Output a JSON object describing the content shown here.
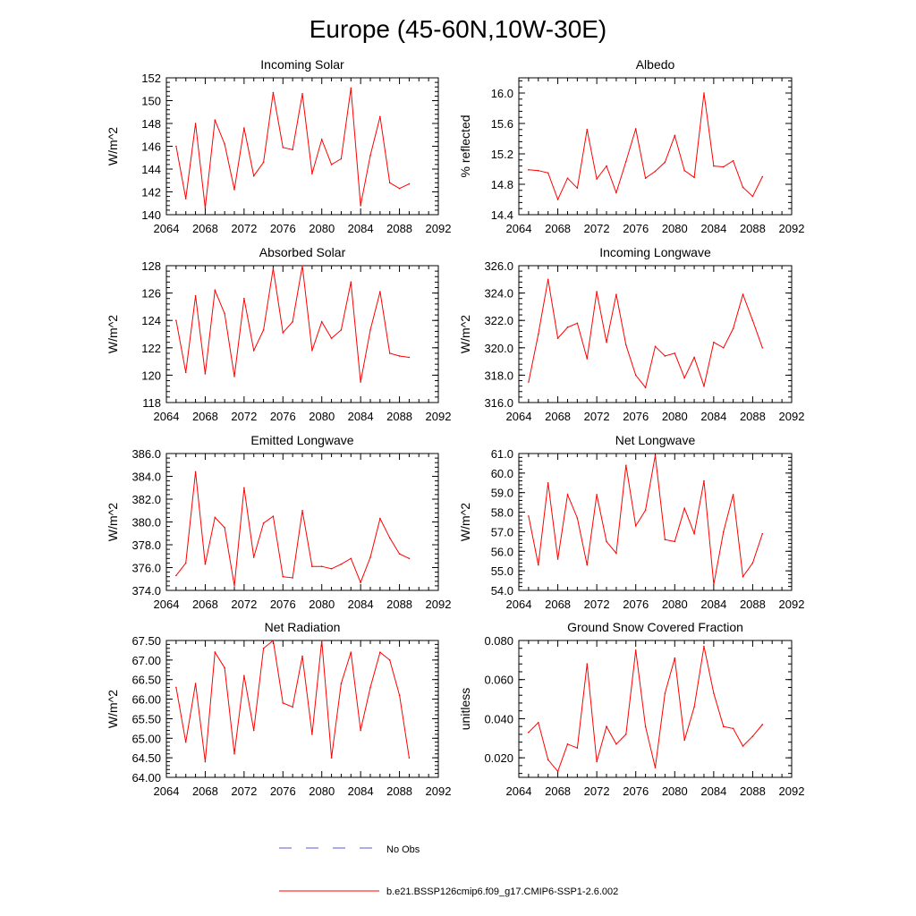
{
  "figure": {
    "title": "Europe (45-60N,10W-30E)"
  },
  "legend": {
    "obs_label": "No Obs",
    "obs_color": "#5b5bd6",
    "model_label": "b.e21.BSSP126cmip6.f09_g17.CMIP6-SSP1-2.6.002",
    "model_color": "#ff0000"
  },
  "chart_data": [
    {
      "type": "line",
      "title": "Incoming Solar",
      "xlabel": "",
      "ylabel": "W/m^2",
      "xlim": [
        2064,
        2092
      ],
      "ylim": [
        140,
        152
      ],
      "xticks": [
        "2064",
        "2068",
        "2072",
        "2076",
        "2080",
        "2084",
        "2088",
        "2092"
      ],
      "yticks": [
        "140",
        "142",
        "144",
        "146",
        "148",
        "150",
        "152"
      ],
      "x": [
        2065,
        2066,
        2067,
        2068,
        2069,
        2070,
        2071,
        2072,
        2073,
        2074,
        2075,
        2076,
        2077,
        2078,
        2079,
        2080,
        2081,
        2082,
        2083,
        2084,
        2085,
        2086,
        2087,
        2088,
        2089
      ],
      "series": [
        {
          "values": [
            146.0,
            141.4,
            148.0,
            140.6,
            148.3,
            146.2,
            142.2,
            147.6,
            143.4,
            144.6,
            150.7,
            145.9,
            145.7,
            150.6,
            143.6,
            146.6,
            144.4,
            144.9,
            151.1,
            140.8,
            145.2,
            148.6,
            142.8,
            142.3,
            142.7
          ]
        }
      ]
    },
    {
      "type": "line",
      "title": "Albedo",
      "xlabel": "",
      "ylabel": "% reflected",
      "xlim": [
        2064,
        2092
      ],
      "ylim": [
        14.4,
        16.2
      ],
      "xticks": [
        "2064",
        "2068",
        "2072",
        "2076",
        "2080",
        "2084",
        "2088",
        "2092"
      ],
      "yticks": [
        "14.4",
        "14.8",
        "15.2",
        "15.6",
        "16.0"
      ],
      "x": [
        2065,
        2066,
        2067,
        2068,
        2069,
        2070,
        2071,
        2072,
        2073,
        2074,
        2075,
        2076,
        2077,
        2078,
        2079,
        2080,
        2081,
        2082,
        2083,
        2084,
        2085,
        2086,
        2087,
        2088,
        2089
      ],
      "series": [
        {
          "values": [
            14.99,
            14.98,
            14.95,
            14.6,
            14.88,
            14.75,
            15.52,
            14.87,
            15.04,
            14.69,
            15.1,
            15.53,
            14.88,
            14.97,
            15.09,
            15.44,
            14.98,
            14.89,
            16.0,
            15.04,
            15.03,
            15.11,
            14.76,
            14.64,
            14.9
          ]
        }
      ]
    },
    {
      "type": "line",
      "title": "Absorbed Solar",
      "xlabel": "",
      "ylabel": "W/m^2",
      "xlim": [
        2064,
        2092
      ],
      "ylim": [
        118,
        128
      ],
      "xticks": [
        "2064",
        "2068",
        "2072",
        "2076",
        "2080",
        "2084",
        "2088",
        "2092"
      ],
      "yticks": [
        "118",
        "120",
        "122",
        "124",
        "126",
        "128"
      ],
      "x": [
        2065,
        2066,
        2067,
        2068,
        2069,
        2070,
        2071,
        2072,
        2073,
        2074,
        2075,
        2076,
        2077,
        2078,
        2079,
        2080,
        2081,
        2082,
        2083,
        2084,
        2085,
        2086,
        2087,
        2088,
        2089
      ],
      "series": [
        {
          "values": [
            124.0,
            120.2,
            125.8,
            120.1,
            126.2,
            124.5,
            119.9,
            125.6,
            121.8,
            123.3,
            127.8,
            123.1,
            123.9,
            128.0,
            121.8,
            123.9,
            122.7,
            123.3,
            126.8,
            119.5,
            123.3,
            126.1,
            121.6,
            121.4,
            121.3
          ]
        }
      ]
    },
    {
      "type": "line",
      "title": "Incoming Longwave",
      "xlabel": "",
      "ylabel": "W/m^2",
      "xlim": [
        2064,
        2092
      ],
      "ylim": [
        316,
        326
      ],
      "xticks": [
        "2064",
        "2068",
        "2072",
        "2076",
        "2080",
        "2084",
        "2088",
        "2092"
      ],
      "yticks": [
        "316.0",
        "318.0",
        "320.0",
        "322.0",
        "324.0",
        "326.0"
      ],
      "x": [
        2065,
        2066,
        2067,
        2068,
        2069,
        2070,
        2071,
        2072,
        2073,
        2074,
        2075,
        2076,
        2077,
        2078,
        2079,
        2080,
        2081,
        2082,
        2083,
        2084,
        2085,
        2086,
        2087,
        2088,
        2089
      ],
      "series": [
        {
          "values": [
            317.5,
            321.0,
            325.0,
            320.7,
            321.5,
            321.8,
            319.2,
            324.1,
            320.4,
            323.9,
            320.2,
            318.0,
            317.1,
            320.1,
            319.4,
            319.6,
            317.8,
            319.3,
            317.2,
            320.4,
            320.0,
            321.4,
            323.9,
            322.0,
            320.0
          ]
        }
      ]
    },
    {
      "type": "line",
      "title": "Emitted Longwave",
      "xlabel": "",
      "ylabel": "W/m^2",
      "xlim": [
        2064,
        2092
      ],
      "ylim": [
        374,
        386
      ],
      "xticks": [
        "2064",
        "2068",
        "2072",
        "2076",
        "2080",
        "2084",
        "2088",
        "2092"
      ],
      "yticks": [
        "374.0",
        "376.0",
        "378.0",
        "380.0",
        "382.0",
        "384.0",
        "386.0"
      ],
      "x": [
        2065,
        2066,
        2067,
        2068,
        2069,
        2070,
        2071,
        2072,
        2073,
        2074,
        2075,
        2076,
        2077,
        2078,
        2079,
        2080,
        2081,
        2082,
        2083,
        2084,
        2085,
        2086,
        2087,
        2088,
        2089
      ],
      "series": [
        {
          "values": [
            375.3,
            376.4,
            384.4,
            376.3,
            380.4,
            379.5,
            374.4,
            383.0,
            376.9,
            379.9,
            380.5,
            375.2,
            375.1,
            381.0,
            376.1,
            376.1,
            375.9,
            376.3,
            376.8,
            374.7,
            376.9,
            380.3,
            378.6,
            377.2,
            376.8
          ]
        }
      ]
    },
    {
      "type": "line",
      "title": "Net Longwave",
      "xlabel": "",
      "ylabel": "W/m^2",
      "xlim": [
        2064,
        2092
      ],
      "ylim": [
        54,
        61
      ],
      "xticks": [
        "2064",
        "2068",
        "2072",
        "2076",
        "2080",
        "2084",
        "2088",
        "2092"
      ],
      "yticks": [
        "54.0",
        "55.0",
        "56.0",
        "57.0",
        "58.0",
        "59.0",
        "60.0",
        "61.0"
      ],
      "x": [
        2065,
        2066,
        2067,
        2068,
        2069,
        2070,
        2071,
        2072,
        2073,
        2074,
        2075,
        2076,
        2077,
        2078,
        2079,
        2080,
        2081,
        2082,
        2083,
        2084,
        2085,
        2086,
        2087,
        2088,
        2089
      ],
      "series": [
        {
          "values": [
            57.8,
            55.3,
            59.5,
            55.6,
            58.9,
            57.7,
            55.3,
            58.9,
            56.5,
            55.9,
            60.4,
            57.3,
            58.1,
            60.9,
            56.6,
            56.5,
            58.2,
            56.9,
            59.6,
            54.3,
            57.0,
            58.9,
            54.7,
            55.4,
            56.9
          ]
        }
      ]
    },
    {
      "type": "line",
      "title": "Net Radiation",
      "xlabel": "",
      "ylabel": "W/m^2",
      "xlim": [
        2064,
        2092
      ],
      "ylim": [
        64.0,
        67.5
      ],
      "xticks": [
        "2064",
        "2068",
        "2072",
        "2076",
        "2080",
        "2084",
        "2088",
        "2092"
      ],
      "yticks": [
        "64.00",
        "64.50",
        "65.00",
        "65.50",
        "66.00",
        "66.50",
        "67.00",
        "67.50"
      ],
      "x": [
        2065,
        2066,
        2067,
        2068,
        2069,
        2070,
        2071,
        2072,
        2073,
        2074,
        2075,
        2076,
        2077,
        2078,
        2079,
        2080,
        2081,
        2082,
        2083,
        2084,
        2085,
        2086,
        2087,
        2088,
        2089
      ],
      "series": [
        {
          "values": [
            66.3,
            64.9,
            66.4,
            64.4,
            67.2,
            66.8,
            64.6,
            66.6,
            65.2,
            67.3,
            67.5,
            65.9,
            65.8,
            67.1,
            65.1,
            67.5,
            64.5,
            66.4,
            67.2,
            65.2,
            66.3,
            67.2,
            67.0,
            66.1,
            64.5
          ]
        }
      ]
    },
    {
      "type": "line",
      "title": "Ground Snow Covered Fraction",
      "xlabel": "",
      "ylabel": "unitless",
      "xlim": [
        2064,
        2092
      ],
      "ylim": [
        0.01,
        0.08
      ],
      "xticks": [
        "2064",
        "2068",
        "2072",
        "2076",
        "2080",
        "2084",
        "2088",
        "2092"
      ],
      "yticks": [
        "0.020",
        "0.040",
        "0.060",
        "0.080"
      ],
      "x": [
        2065,
        2066,
        2067,
        2068,
        2069,
        2070,
        2071,
        2072,
        2073,
        2074,
        2075,
        2076,
        2077,
        2078,
        2079,
        2080,
        2081,
        2082,
        2083,
        2084,
        2085,
        2086,
        2087,
        2088,
        2089
      ],
      "series": [
        {
          "values": [
            0.033,
            0.038,
            0.019,
            0.013,
            0.027,
            0.025,
            0.068,
            0.018,
            0.036,
            0.027,
            0.032,
            0.075,
            0.036,
            0.015,
            0.053,
            0.071,
            0.029,
            0.046,
            0.077,
            0.053,
            0.036,
            0.035,
            0.026,
            0.031,
            0.037
          ]
        }
      ]
    }
  ]
}
